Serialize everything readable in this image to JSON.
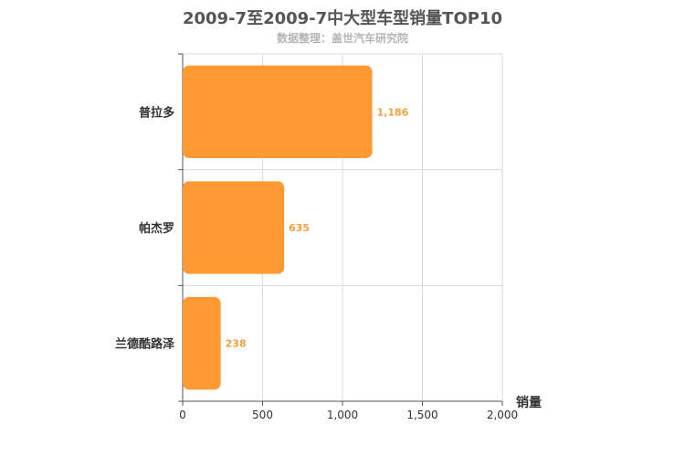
{
  "chart_data": {
    "type": "bar",
    "orientation": "horizontal",
    "title": "2009-7至2009-7中大型车型销量TOP10",
    "subtitle": "数据整理：盖世汽车研究院",
    "categories": [
      "普拉多",
      "帕杰罗",
      "兰德酷路泽"
    ],
    "values": [
      1186,
      635,
      238
    ],
    "value_labels": [
      "1,186",
      "635",
      "238"
    ],
    "xlabel": "销量",
    "ylabel": "",
    "xlim": [
      0,
      2000
    ],
    "xticks": [
      0,
      500,
      1000,
      1500,
      2000
    ],
    "xtick_labels": [
      "0",
      "500",
      "1,000",
      "1,500",
      "2,000"
    ],
    "grid": true,
    "bar_color": "#ff9933",
    "label_color": "#f0a040"
  }
}
